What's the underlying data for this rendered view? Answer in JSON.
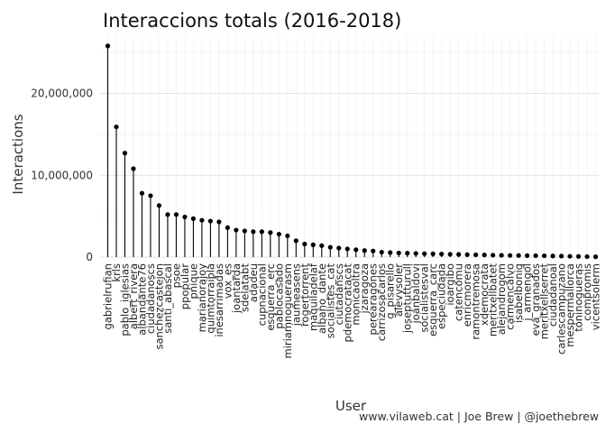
{
  "chart_data": {
    "type": "lollipop",
    "title": "Interaccions totals (2016-2018)",
    "xlabel": "User",
    "ylabel": "Interactions",
    "caption": "www.vilaweb.cat | Joe Brew | @joethebrew",
    "ylim": [
      0,
      27000000
    ],
    "y_ticks": [
      0,
      10000000,
      20000000
    ],
    "y_tick_labels": [
      "0",
      "10,000,000",
      "20,000,000"
    ],
    "grid": true,
    "legend": "none",
    "point_color": "#000000",
    "categories": [
      "gabrielrufian",
      "krls",
      "pablo_iglesias",
      "albert_rivera",
      "albandante76",
      "ciudadanoscs",
      "sanchezcastejon",
      "santi_abascal",
      "psoe",
      "ppopular",
      "pnique",
      "marianorajoy",
      "quimtorraipla",
      "inesarrimadas",
      "vox_es",
      "joantarda",
      "sdelatabt",
      "adadeu",
      "cupnacional",
      "esquerra_erc",
      "pablocasado",
      "miriamnoguerasm",
      "jaumeasens",
      "rogertorrent",
      "maquiladelaf",
      "albano_dante",
      "socialistes_cat",
      "ciutadanscs",
      "pdemocratacat",
      "monicaoltra",
      "jzaragoza",
      "perearagones",
      "carrizosacarlos",
      "g_pisarello",
      "alevysoler",
      "joseptutturull",
      "joanbaldovi",
      "socialistesval",
      "esquerra_carc",
      "especiudada",
      "ioargibo",
      "catencomu",
      "enricmorera",
      "ramontremosa",
      "xdemocrata",
      "meritxellbatet",
      "alejandrogom",
      "carmencalvo",
      "isabelbonig",
      "j_armengol",
      "eva_granados",
      "meritxellserret",
      "ciudadanoal",
      "carlescampuzano",
      "mespermallorca",
      "toninogueras",
      "compromis",
      "vicentsolerm"
    ],
    "values": [
      25800000,
      15900000,
      12700000,
      10800000,
      7800000,
      7500000,
      6300000,
      5200000,
      5200000,
      4900000,
      4700000,
      4500000,
      4400000,
      4300000,
      3600000,
      3300000,
      3200000,
      3100000,
      3100000,
      3000000,
      2800000,
      2600000,
      2000000,
      1600000,
      1500000,
      1400000,
      1200000,
      1100000,
      1000000,
      900000,
      800000,
      750000,
      600000,
      550000,
      500000,
      480000,
      450000,
      420000,
      400000,
      380000,
      350000,
      330000,
      300000,
      280000,
      260000,
      240000,
      220000,
      200000,
      190000,
      180000,
      170000,
      160000,
      140000,
      120000,
      100000,
      80000,
      60000,
      40000
    ]
  }
}
